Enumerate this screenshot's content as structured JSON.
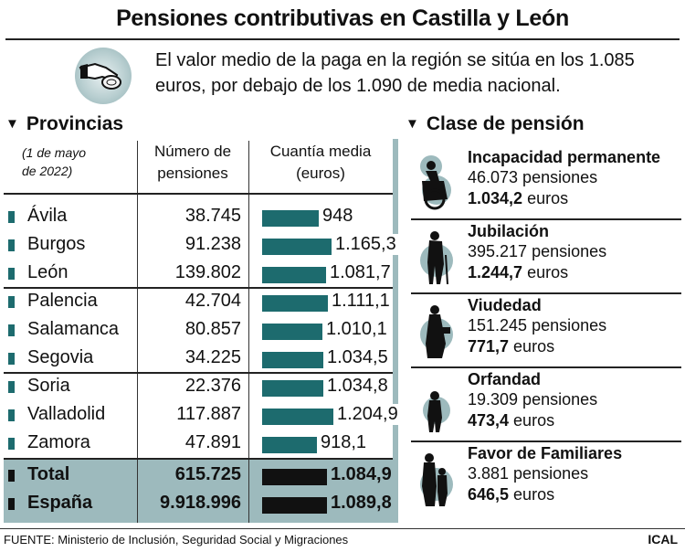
{
  "title": "Pensiones contributivas en Castilla y León",
  "intro": "El valor medio de la paga en la región se sitúa en los 1.085 euros, por debajo de los 1.090 de media nacional.",
  "provinces_section": {
    "heading": "Provincias",
    "date_note_line1": "(1 de mayo",
    "date_note_line2": "de 2022)",
    "col_count_line1": "Número de",
    "col_count_line2": "pensiones",
    "col_amount_line1": "Cuantía media",
    "col_amount_line2": "(euros)"
  },
  "pension_types_section": {
    "heading": "Clase de pensión"
  },
  "colors": {
    "bar": "#1d6b6e",
    "total_bar": "#111111",
    "band": "#9dbabd"
  },
  "chart_data": {
    "type": "table",
    "columns": [
      "Provincias",
      "Número de pensiones",
      "Cuantía media (euros)"
    ],
    "rows": [
      {
        "label": "Ávila",
        "count_text": "38.745",
        "amount_text": "948",
        "amount": 948,
        "count": 38745
      },
      {
        "label": "Burgos",
        "count_text": "91.238",
        "amount_text": "1.165,3",
        "amount": 1165.3,
        "count": 91238
      },
      {
        "label": "León",
        "count_text": "139.802",
        "amount_text": "1.081,7",
        "amount": 1081.7,
        "count": 139802
      },
      {
        "label": "Palencia",
        "count_text": "42.704",
        "amount_text": "1.111,1",
        "amount": 1111.1,
        "count": 42704
      },
      {
        "label": "Salamanca",
        "count_text": "80.857",
        "amount_text": "1.010,1",
        "amount": 1010.1,
        "count": 80857
      },
      {
        "label": "Segovia",
        "count_text": "34.225",
        "amount_text": "1.034,5",
        "amount": 1034.5,
        "count": 34225
      },
      {
        "label": "Soria",
        "count_text": "22.376",
        "amount_text": "1.034,8",
        "amount": 1034.8,
        "count": 22376
      },
      {
        "label": "Valladolid",
        "count_text": "117.887",
        "amount_text": "1.204,9",
        "amount": 1204.9,
        "count": 117887
      },
      {
        "label": "Zamora",
        "count_text": "47.891",
        "amount_text": "918,1",
        "amount": 918.1,
        "count": 47891
      }
    ],
    "totals": [
      {
        "label": "Total",
        "count_text": "615.725",
        "amount_text": "1.084,9",
        "amount": 1084.9,
        "count": 615725
      },
      {
        "label": "España",
        "count_text": "9.918.996",
        "amount_text": "1.089,8",
        "amount": 1089.8,
        "count": 9918996
      }
    ],
    "pension_types": [
      {
        "name": "Incapacidad permanente",
        "count_text": "46.073 pensiones",
        "amount_bold": "1.034,2",
        "amount_unit": " euros",
        "icon": "wheelchair-person-icon"
      },
      {
        "name": "Jubilación",
        "count_text": "395.217 pensiones",
        "amount_bold": "1.244,7",
        "amount_unit": " euros",
        "icon": "elderly-man-cane-icon"
      },
      {
        "name": "Viudedad",
        "count_text": "151.245 pensiones",
        "amount_bold": "771,7",
        "amount_unit": " euros",
        "icon": "elderly-woman-icon"
      },
      {
        "name": "Orfandad",
        "count_text": "19.309 pensiones",
        "amount_bold": "473,4",
        "amount_unit": " euros",
        "icon": "child-icon"
      },
      {
        "name": "Favor de Familiares",
        "count_text": "3.881 pensiones",
        "amount_bold": "646,5",
        "amount_unit": " euros",
        "icon": "family-members-icon"
      }
    ]
  },
  "footer": {
    "source": "FUENTE: Ministerio de Inclusión, Seguridad Social y Migraciones",
    "credit": "ICAL"
  }
}
